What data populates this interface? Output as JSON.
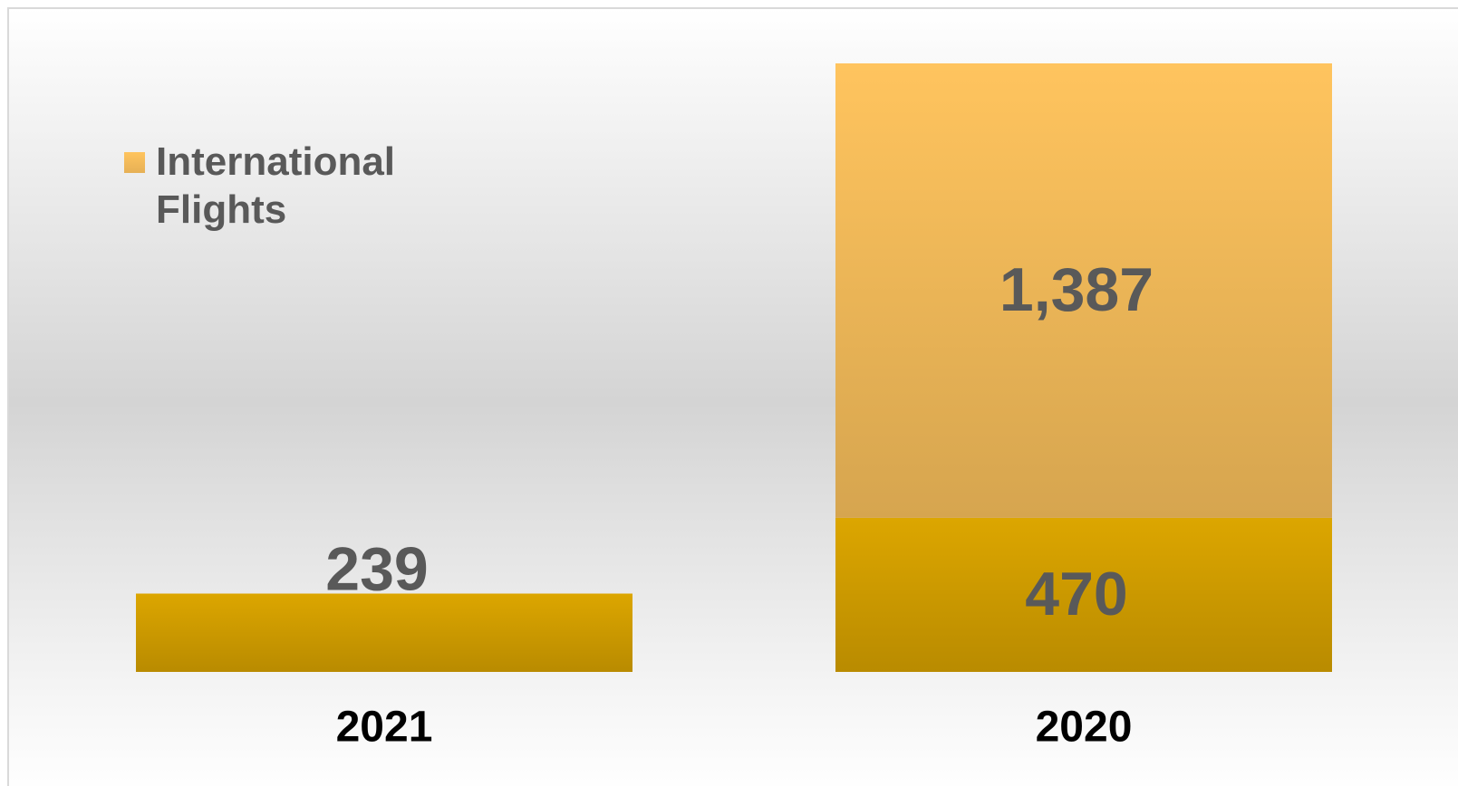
{
  "chart_data": {
    "type": "stacked-bar",
    "categories": [
      "2021",
      "2020"
    ],
    "series": [
      {
        "color": "#dca600",
        "values": [
          239,
          470
        ]
      },
      {
        "name": "International Flights",
        "color": "#ffc45e",
        "values": [
          null,
          1387
        ],
        "value_labels": [
          null,
          "1,387"
        ]
      }
    ],
    "legend": "top-left"
  }
}
